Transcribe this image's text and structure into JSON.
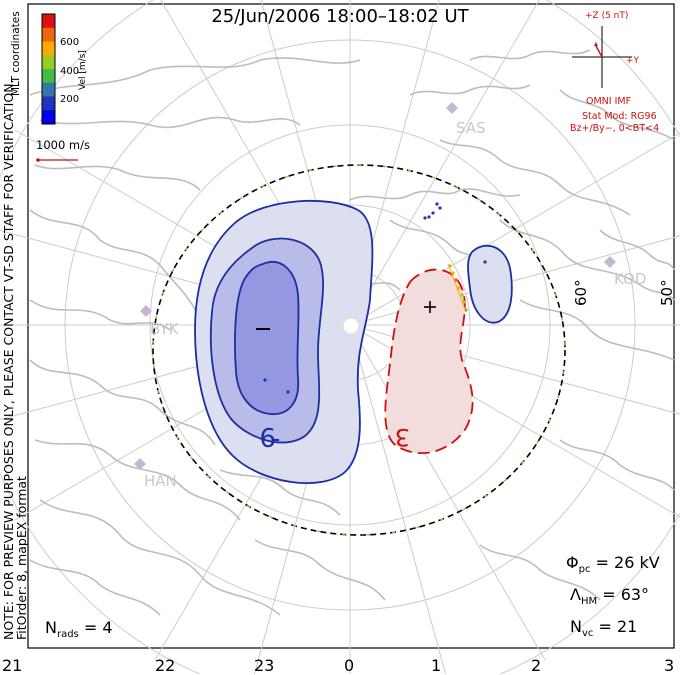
{
  "header": {
    "title": "25/Jun/2006  18:00–18:02  UT"
  },
  "velocity_scale": {
    "ticks": [
      "600",
      "400",
      "200"
    ],
    "unit_label": "Vel [m/s]",
    "coord_label": "MLT coordinates",
    "colors": [
      "#dd1111",
      "#ee6611",
      "#ffaa00",
      "#99cc22",
      "#44bb44",
      "#3377aa",
      "#2233bb",
      "#0000ee"
    ]
  },
  "vector_legend": {
    "label": "1000 m/s"
  },
  "imf": {
    "z_label": "+Z (5 nT)",
    "y_label": "+Y",
    "title": "OMNI IMF",
    "model": "Stat Mod: RG96",
    "condition": "Bz+/By−, 0<BT<4"
  },
  "stations": [
    "SAS",
    "KOD",
    "BYK",
    "HAN"
  ],
  "latitudes": [
    "60°",
    "50°"
  ],
  "contours": {
    "negative_label": "−9",
    "positive_label": "3",
    "min_symbol": "−",
    "max_symbol": "+"
  },
  "stats": {
    "phi_pc": "Φpc = 26 kV",
    "phi_symbol": "Φ",
    "phi_sub": "pc",
    "phi_value": " = 26 kV",
    "lambda_symbol": "Λ",
    "lambda_sub": "HM",
    "lambda_value": " = 63°",
    "n_symbol": "N",
    "n_sub": "vc",
    "n_value": " = 21",
    "rads_symbol": "N",
    "rads_sub": "rads",
    "rads_value": " = 4"
  },
  "notes": {
    "preview": "NOTE: FOR PREVIEW PURPOSES ONLY, PLEASE CONTACT VT-SD STAFF FOR VERIFICATION.",
    "fit": "FitOrder: 8, mapEX format"
  },
  "mlt_ticks": [
    "21",
    "22",
    "23",
    "0",
    "1",
    "2",
    "3"
  ],
  "colors": {
    "negative": "#1a2fa0",
    "negative_fill": "#dcdff0",
    "negative_inner": "#b9bce8",
    "negative_core": "#9597e0",
    "positive": "#cc1111",
    "positive_fill": "#f2dcdc",
    "land": "#bdbdbd",
    "grid": "#cccccc"
  }
}
